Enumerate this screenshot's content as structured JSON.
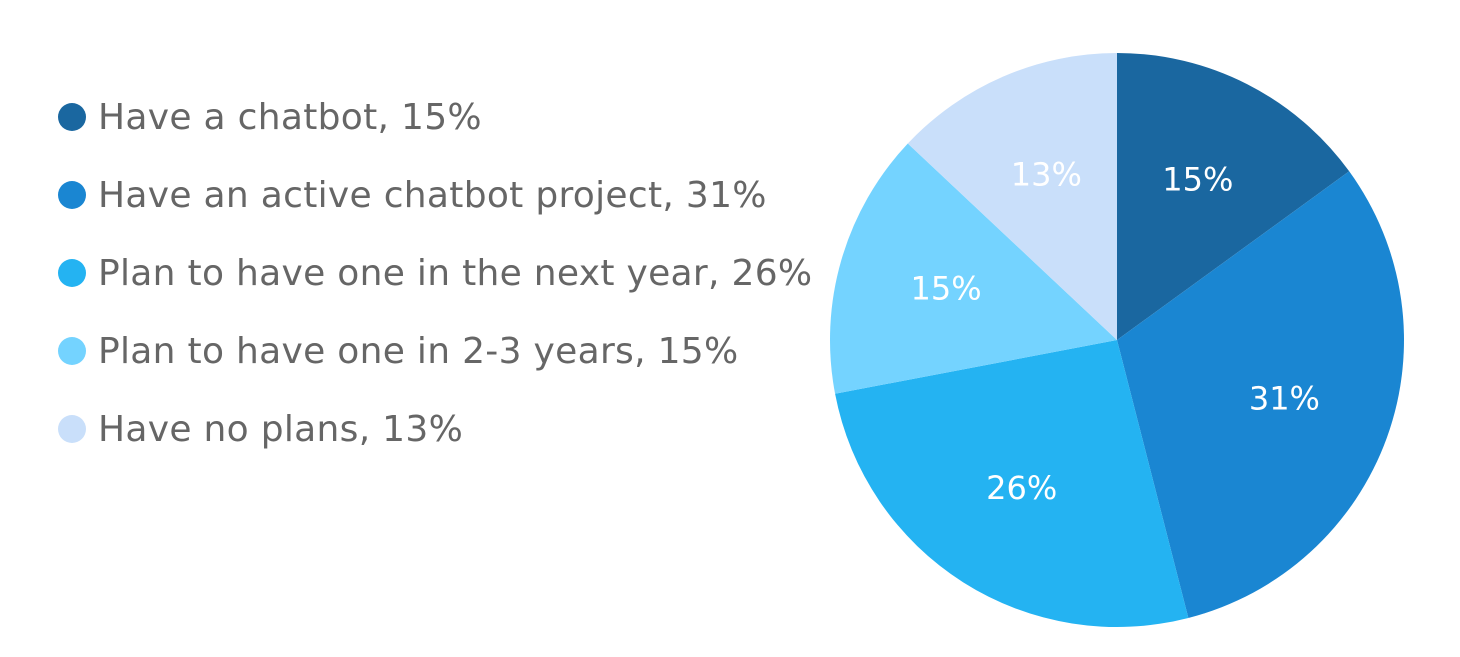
{
  "chart_data": {
    "type": "pie",
    "title": "",
    "legend_position": "left",
    "start_angle_deg": 0,
    "direction": "clockwise",
    "slices": [
      {
        "name": "Have a chatbot",
        "value": 15,
        "legend_label": "Have a chatbot, 15%",
        "data_label": "15%",
        "color": "#1a67a0"
      },
      {
        "name": "Have an active chatbot project",
        "value": 31,
        "legend_label": "Have an active chatbot project, 31%",
        "data_label": "31%",
        "color": "#1a86d2"
      },
      {
        "name": "Plan to have one in the next year",
        "value": 26,
        "legend_label": "Plan to have one in the next year, 26%",
        "data_label": "26%",
        "color": "#24b3f2"
      },
      {
        "name": "Plan to have one in 2-3 years",
        "value": 15,
        "legend_label": "Plan to have one in 2-3 years, 15%",
        "data_label": "15%",
        "color": "#74d3ff"
      },
      {
        "name": "Have no plans",
        "value": 13,
        "legend_label": "Have no plans, 13%",
        "data_label": "13%",
        "color": "#c9dffa"
      }
    ]
  }
}
